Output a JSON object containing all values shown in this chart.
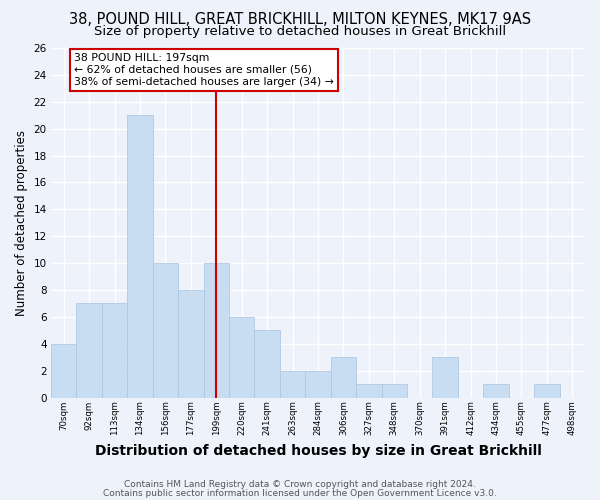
{
  "title1": "38, POUND HILL, GREAT BRICKHILL, MILTON KEYNES, MK17 9AS",
  "title2": "Size of property relative to detached houses in Great Brickhill",
  "xlabel": "Distribution of detached houses by size in Great Brickhill",
  "ylabel": "Number of detached properties",
  "footer1": "Contains HM Land Registry data © Crown copyright and database right 2024.",
  "footer2": "Contains public sector information licensed under the Open Government Licence v3.0.",
  "bin_labels": [
    "70sqm",
    "92sqm",
    "113sqm",
    "134sqm",
    "156sqm",
    "177sqm",
    "199sqm",
    "220sqm",
    "241sqm",
    "263sqm",
    "284sqm",
    "306sqm",
    "327sqm",
    "348sqm",
    "370sqm",
    "391sqm",
    "412sqm",
    "434sqm",
    "455sqm",
    "477sqm",
    "498sqm"
  ],
  "bar_values": [
    4,
    7,
    7,
    21,
    10,
    8,
    10,
    6,
    5,
    2,
    2,
    3,
    1,
    1,
    0,
    3,
    0,
    1,
    0,
    1,
    0
  ],
  "bar_color": "#c9ddf2",
  "bar_edge_color": "#aac4e0",
  "vline_x_index": 6,
  "vline_color": "#cc0000",
  "annotation_text": "38 POUND HILL: 197sqm\n← 62% of detached houses are smaller (56)\n38% of semi-detached houses are larger (34) →",
  "annotation_box_color": "#ffffff",
  "annotation_box_edge": "#cc0000",
  "ylim": [
    0,
    26
  ],
  "yticks": [
    0,
    2,
    4,
    6,
    8,
    10,
    12,
    14,
    16,
    18,
    20,
    22,
    24,
    26
  ],
  "bg_color": "#eef2fa",
  "grid_color": "#ffffff",
  "title1_fontsize": 10.5,
  "title2_fontsize": 9.5,
  "xlabel_fontsize": 10,
  "ylabel_fontsize": 8.5,
  "footer_fontsize": 6.5
}
